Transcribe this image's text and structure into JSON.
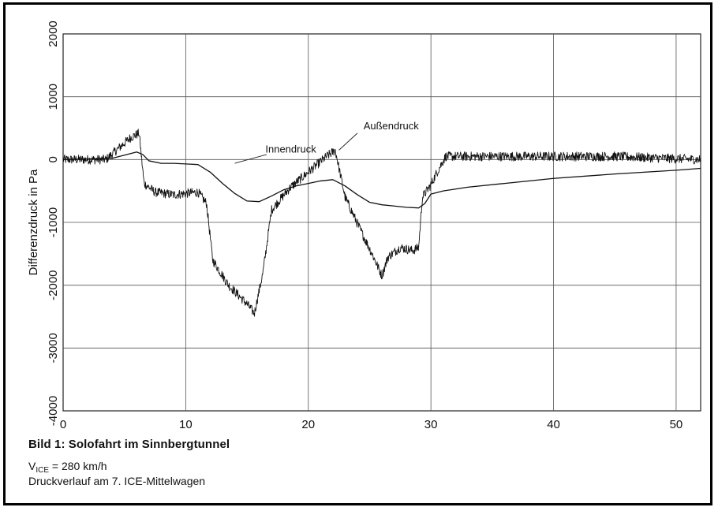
{
  "chart_data": {
    "type": "line",
    "xlabel": "",
    "ylabel": "Differenzdruck in Pa",
    "xlim": [
      0,
      52
    ],
    "ylim": [
      -4000,
      2000
    ],
    "xticks": [
      "0",
      "10",
      "20",
      "30",
      "40",
      "50"
    ],
    "yticks": [
      "2000",
      "1000",
      "0",
      "-1000",
      "-2000",
      "-3000",
      "-4000"
    ],
    "grid": true,
    "legend": "none",
    "series": [
      {
        "name": "Außendruck",
        "color": "#111111",
        "noisy": true,
        "x": [
          0,
          3.5,
          5.5,
          6.2,
          6.6,
          7.5,
          9,
          11,
          11.7,
          12.2,
          13.5,
          15,
          15.6,
          16.3,
          17,
          18.5,
          20,
          21.5,
          22.2,
          23,
          24.2,
          25.2,
          26,
          26.5,
          27.5,
          28.5,
          29,
          29.3,
          30,
          30.5,
          31.2,
          35,
          40,
          45,
          52
        ],
        "y": [
          0,
          0,
          350,
          420,
          -380,
          -520,
          -560,
          -520,
          -700,
          -1600,
          -2000,
          -2300,
          -2450,
          -1800,
          -800,
          -450,
          -200,
          50,
          150,
          -600,
          -1100,
          -1500,
          -1850,
          -1550,
          -1400,
          -1450,
          -1400,
          -600,
          -400,
          -200,
          50,
          50,
          50,
          50,
          0
        ]
      },
      {
        "name": "Innendruck",
        "color": "#111111",
        "noisy": false,
        "x": [
          0,
          4,
          6,
          6.5,
          7,
          8,
          9,
          10,
          11,
          12,
          13,
          14,
          15,
          16,
          17,
          18,
          19,
          20,
          21,
          22,
          23,
          24,
          25,
          26,
          27,
          28,
          29,
          29.5,
          30,
          31,
          33,
          36,
          40,
          45,
          50,
          52
        ],
        "y": [
          0,
          20,
          120,
          80,
          -20,
          -60,
          -60,
          -70,
          -80,
          -200,
          -380,
          -540,
          -660,
          -670,
          -580,
          -480,
          -420,
          -380,
          -340,
          -320,
          -420,
          -560,
          -680,
          -720,
          -740,
          -760,
          -770,
          -700,
          -550,
          -500,
          -440,
          -380,
          -300,
          -230,
          -170,
          -140
        ]
      }
    ],
    "annotations": [
      {
        "text": "Außendruck",
        "x": 24.5,
        "y": 480
      },
      {
        "text": "Innendruck",
        "x": 16.5,
        "y": 110
      }
    ]
  },
  "caption": {
    "title": "Bild 1: Solofahrt im Sinnbergtunnel",
    "line1_prefix": "V",
    "line1_sub": "ICE",
    "line1_rest": " = 280 km/h",
    "line2": "Druckverlauf am 7. ICE-Mittelwagen"
  }
}
